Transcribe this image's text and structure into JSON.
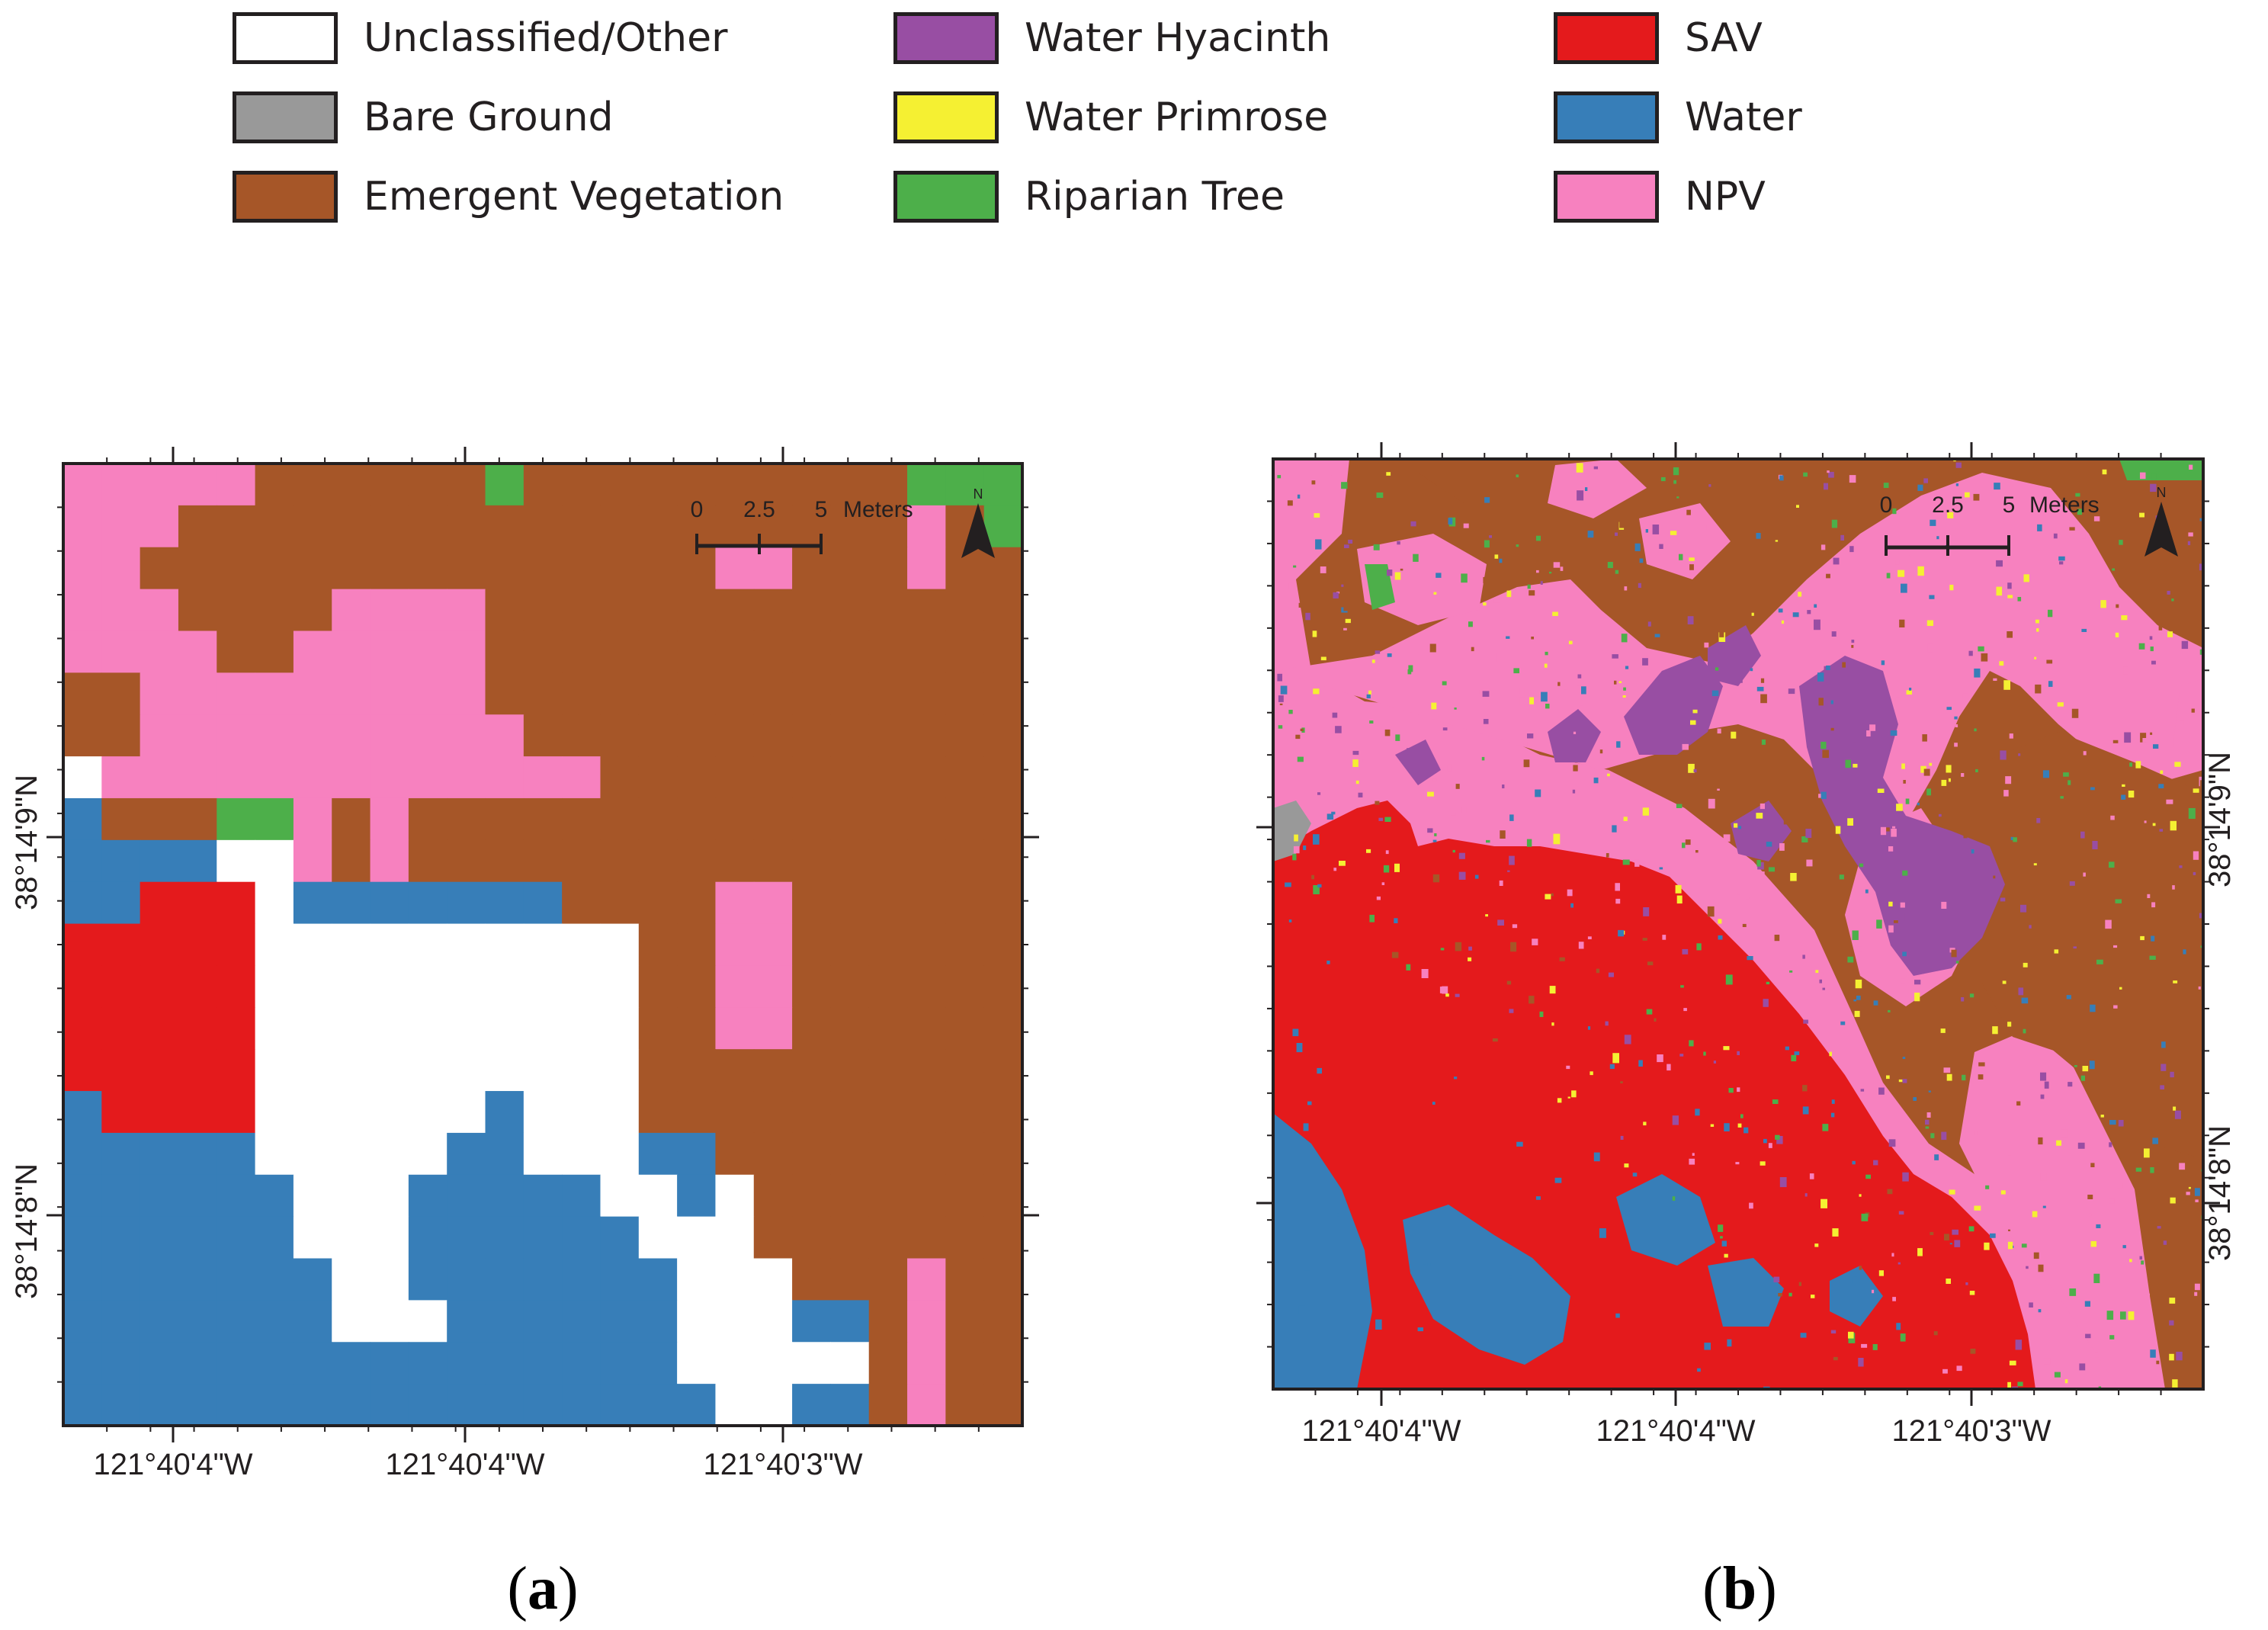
{
  "legend": {
    "items": [
      {
        "label": "Unclassified/Other",
        "color": "#ffffff",
        "key": "U"
      },
      {
        "label": "Bare Ground",
        "color": "#999999",
        "key": "G"
      },
      {
        "label": "Emergent Vegetation",
        "color": "#a65628",
        "key": "B"
      },
      {
        "label": "Water Hyacinth",
        "color": "#984ea3",
        "key": "H"
      },
      {
        "label": "Water Primrose",
        "color": "#f5f032",
        "key": "Y"
      },
      {
        "label": "Riparian Tree",
        "color": "#4daf4a",
        "key": "T"
      },
      {
        "label": "SAV",
        "color": "#e41a1c",
        "key": "R"
      },
      {
        "label": "Water",
        "color": "#377eb8",
        "key": "W"
      },
      {
        "label": "NPV",
        "color": "#f781bf",
        "key": "P"
      }
    ]
  },
  "panels": {
    "a": {
      "label_open": "(",
      "label_letter": "a",
      "label_close": ")",
      "bottom_ticks": [
        "121°40'4\"W",
        "121°40'4\"W",
        "121°40'3\"W"
      ],
      "left_ticks": [
        "38°14'9\"N",
        "38°14'8\"N"
      ],
      "scale_numbers": [
        "0",
        "2.5",
        "5"
      ],
      "scale_unit": "Meters",
      "north_label": "N",
      "class_grid": [
        "PPPPPBBBBBBTBBBBBBBBBBTTT",
        "PPPBBBBBBBBBBBBBBBBBBBPBT",
        "PPBBBBBBBBBBBBBBBPPBBBPBB",
        "PPPBBBBPPPPBBBBBBBBBBBBBB",
        "PPPPBBPPPPPBBBBBBBBBBBBBB",
        "BBPPPPPPPPPBBBBBBBBBBBBBB",
        "BBPPPPPPPPPPBBBBBBBBBBBBB",
        "UPPPPPPPPPPPPPBBBBBBBBBBB",
        "WBBBTTPBPBBBBBBBBBBBBBBBB",
        "WWWWUUPBPBBBBBBBBBBBBBBBB",
        "WWRRRUWWWWWWWBBBBPPBBBBBB",
        "RRRRRUUUUUUUUUUBBPPBBBBBB",
        "RRRRRUUUUUUUUUUBBPPBBBBBB",
        "RRRRRUUUUUUUUUUBBPPBBBBBB",
        "RRRRRUUUUUUUUUUBBBBBBBBBB",
        "WRRRRUUUUUUWUUUBBBBBBBBBB",
        "WWWWWUUUUUWWUUUWWBBBBBBBB",
        "WWWWWWUUUWWWWWUUWUBBBBBBB",
        "WWWWWWUUUWWWWWWUUUBBBBBBB",
        "WWWWWWWUUWWWWWWWUUUBBBPBB",
        "WWWWWWWUUUWWWWWWUUUWWBPBB",
        "WWWWWWWWWWWWWWWWUUUUUBPBB",
        "WWWWWWWWWWWWWWWWWUUWWBPBB"
      ]
    },
    "b": {
      "label_open": "(",
      "label_letter": "b",
      "label_close": ")",
      "bottom_ticks": [
        "121°40'4\"W",
        "121°40'4\"W",
        "121°40'3\"W"
      ],
      "right_ticks": [
        "38°14'9\"N",
        "38°14'8\"N"
      ],
      "scale_numbers": [
        "0",
        "2.5",
        "5"
      ],
      "scale_unit": "Meters",
      "north_label": "N"
    }
  }
}
